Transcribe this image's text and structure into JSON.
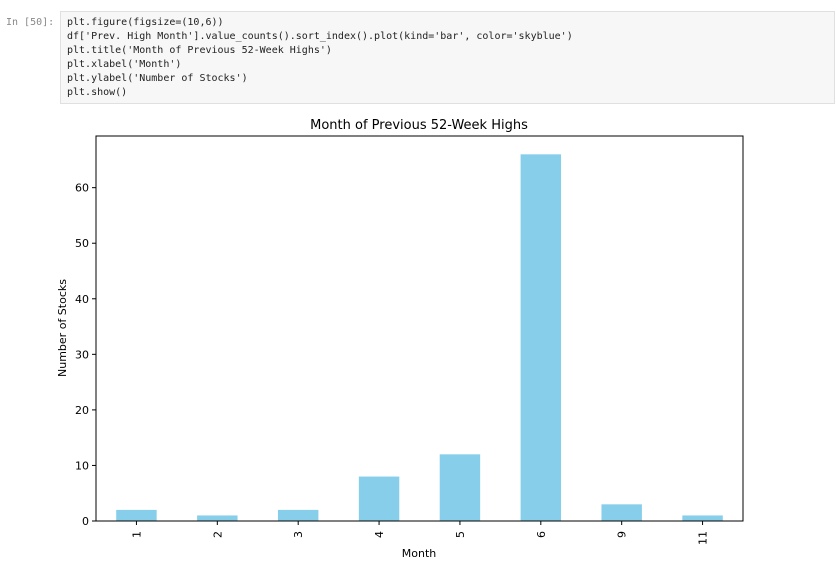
{
  "cell": {
    "prompt": "In [50]:",
    "code_lines": [
      "plt.figure(figsize=(10,6))",
      "df['Prev. High Month'].value_counts().sort_index().plot(kind='bar', color='skyblue')",
      "plt.title('Month of Previous 52-Week Highs')",
      "plt.xlabel('Month')",
      "plt.ylabel('Number of Stocks')",
      "plt.show()"
    ]
  },
  "chart_data": {
    "type": "bar",
    "title": "Month of Previous 52-Week Highs",
    "xlabel": "Month",
    "ylabel": "Number of Stocks",
    "categories": [
      "1",
      "2",
      "3",
      "4",
      "5",
      "6",
      "9",
      "11"
    ],
    "values": [
      2,
      1,
      2,
      8,
      12,
      66,
      3,
      1
    ],
    "yticks": [
      0,
      10,
      20,
      30,
      40,
      50,
      60
    ],
    "ylim": [
      0,
      69.3
    ],
    "bar_color": "#87ceeb",
    "grid": false
  }
}
